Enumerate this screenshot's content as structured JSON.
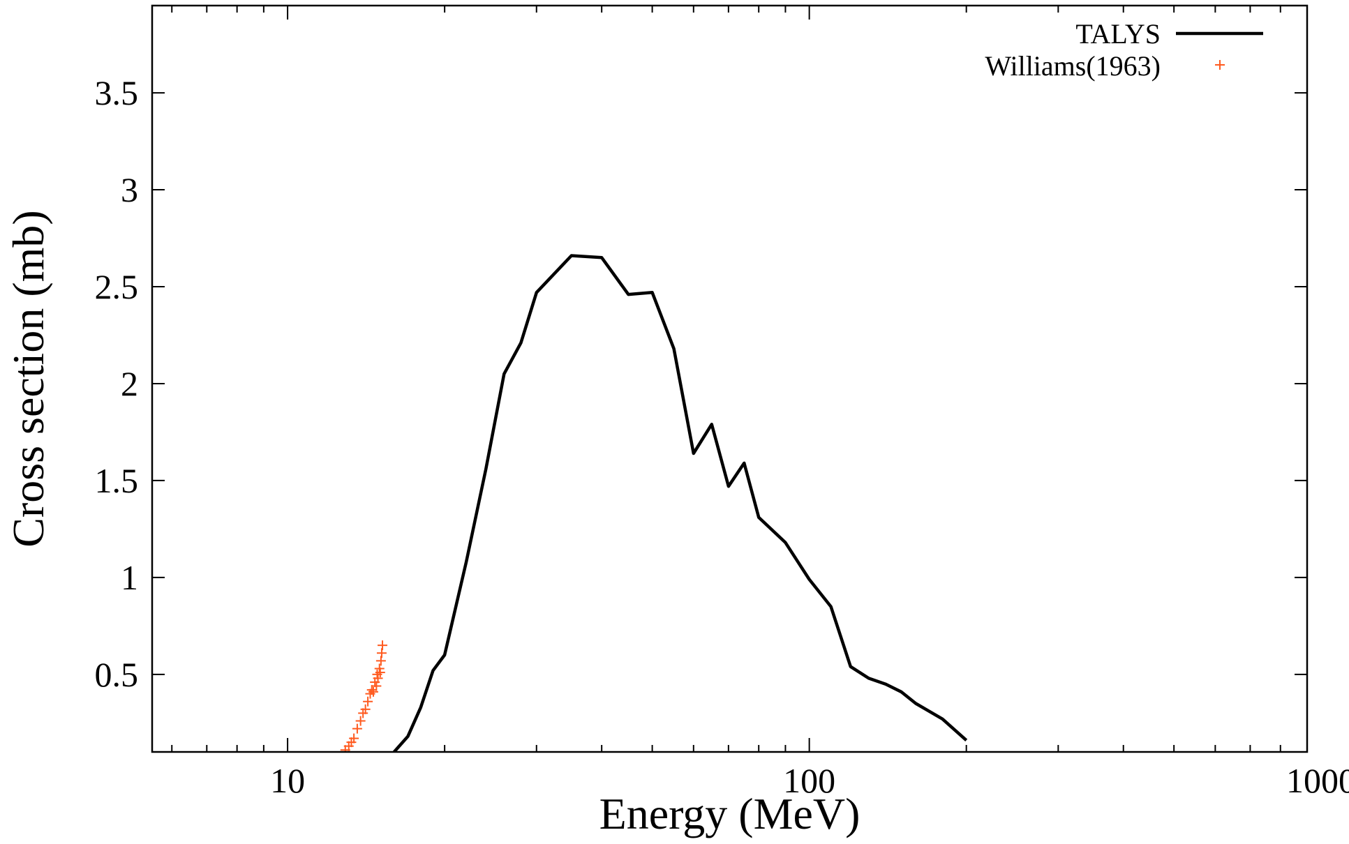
{
  "chart_data": {
    "type": "line",
    "title": "",
    "xlabel": "Energy (MeV)",
    "ylabel": "Cross section (mb)",
    "x_scale": "log",
    "xlim": [
      5.5,
      900
    ],
    "ylim": [
      0.1,
      3.95
    ],
    "x_ticks": [
      {
        "value": 10,
        "label": "10"
      },
      {
        "value": 100,
        "label": "100"
      },
      {
        "value": 1000,
        "label": "1000"
      }
    ],
    "y_ticks": [
      {
        "value": 0.5,
        "label": "0.5"
      },
      {
        "value": 1,
        "label": "1"
      },
      {
        "value": 1.5,
        "label": "1.5"
      },
      {
        "value": 2,
        "label": "2"
      },
      {
        "value": 2.5,
        "label": "2.5"
      },
      {
        "value": 3,
        "label": "3"
      },
      {
        "value": 3.5,
        "label": "3.5"
      }
    ],
    "grid": false,
    "legend_position": "top-right",
    "series": [
      {
        "name": "TALYS",
        "style": "line",
        "color": "#000000",
        "x": [
          16,
          17,
          18,
          19,
          20,
          22,
          24,
          26,
          28,
          30,
          35,
          40,
          45,
          50,
          55,
          60,
          65,
          70,
          75,
          80,
          90,
          100,
          110,
          120,
          130,
          140,
          150,
          160,
          180,
          200
        ],
        "y": [
          0.1,
          0.18,
          0.33,
          0.52,
          0.6,
          1.08,
          1.56,
          2.05,
          2.21,
          2.47,
          2.66,
          2.65,
          2.46,
          2.47,
          2.18,
          1.64,
          1.79,
          1.47,
          1.59,
          1.31,
          1.18,
          0.99,
          0.85,
          0.54,
          0.48,
          0.45,
          0.41,
          0.35,
          0.27,
          0.16
        ]
      },
      {
        "name": "Williams(1963)",
        "style": "points",
        "marker": "plus",
        "color": "#ff5a1f",
        "x": [
          12.9,
          13.1,
          13.25,
          13.4,
          13.6,
          13.8,
          13.95,
          14.1,
          14.25,
          14.4,
          14.5,
          14.6,
          14.7,
          14.8,
          14.85,
          14.9,
          15.0,
          15.05,
          15.1,
          15.15,
          15.2
        ],
        "y": [
          0.11,
          0.13,
          0.15,
          0.17,
          0.22,
          0.26,
          0.3,
          0.32,
          0.36,
          0.4,
          0.42,
          0.41,
          0.46,
          0.44,
          0.5,
          0.48,
          0.53,
          0.51,
          0.57,
          0.61,
          0.65
        ]
      }
    ]
  }
}
